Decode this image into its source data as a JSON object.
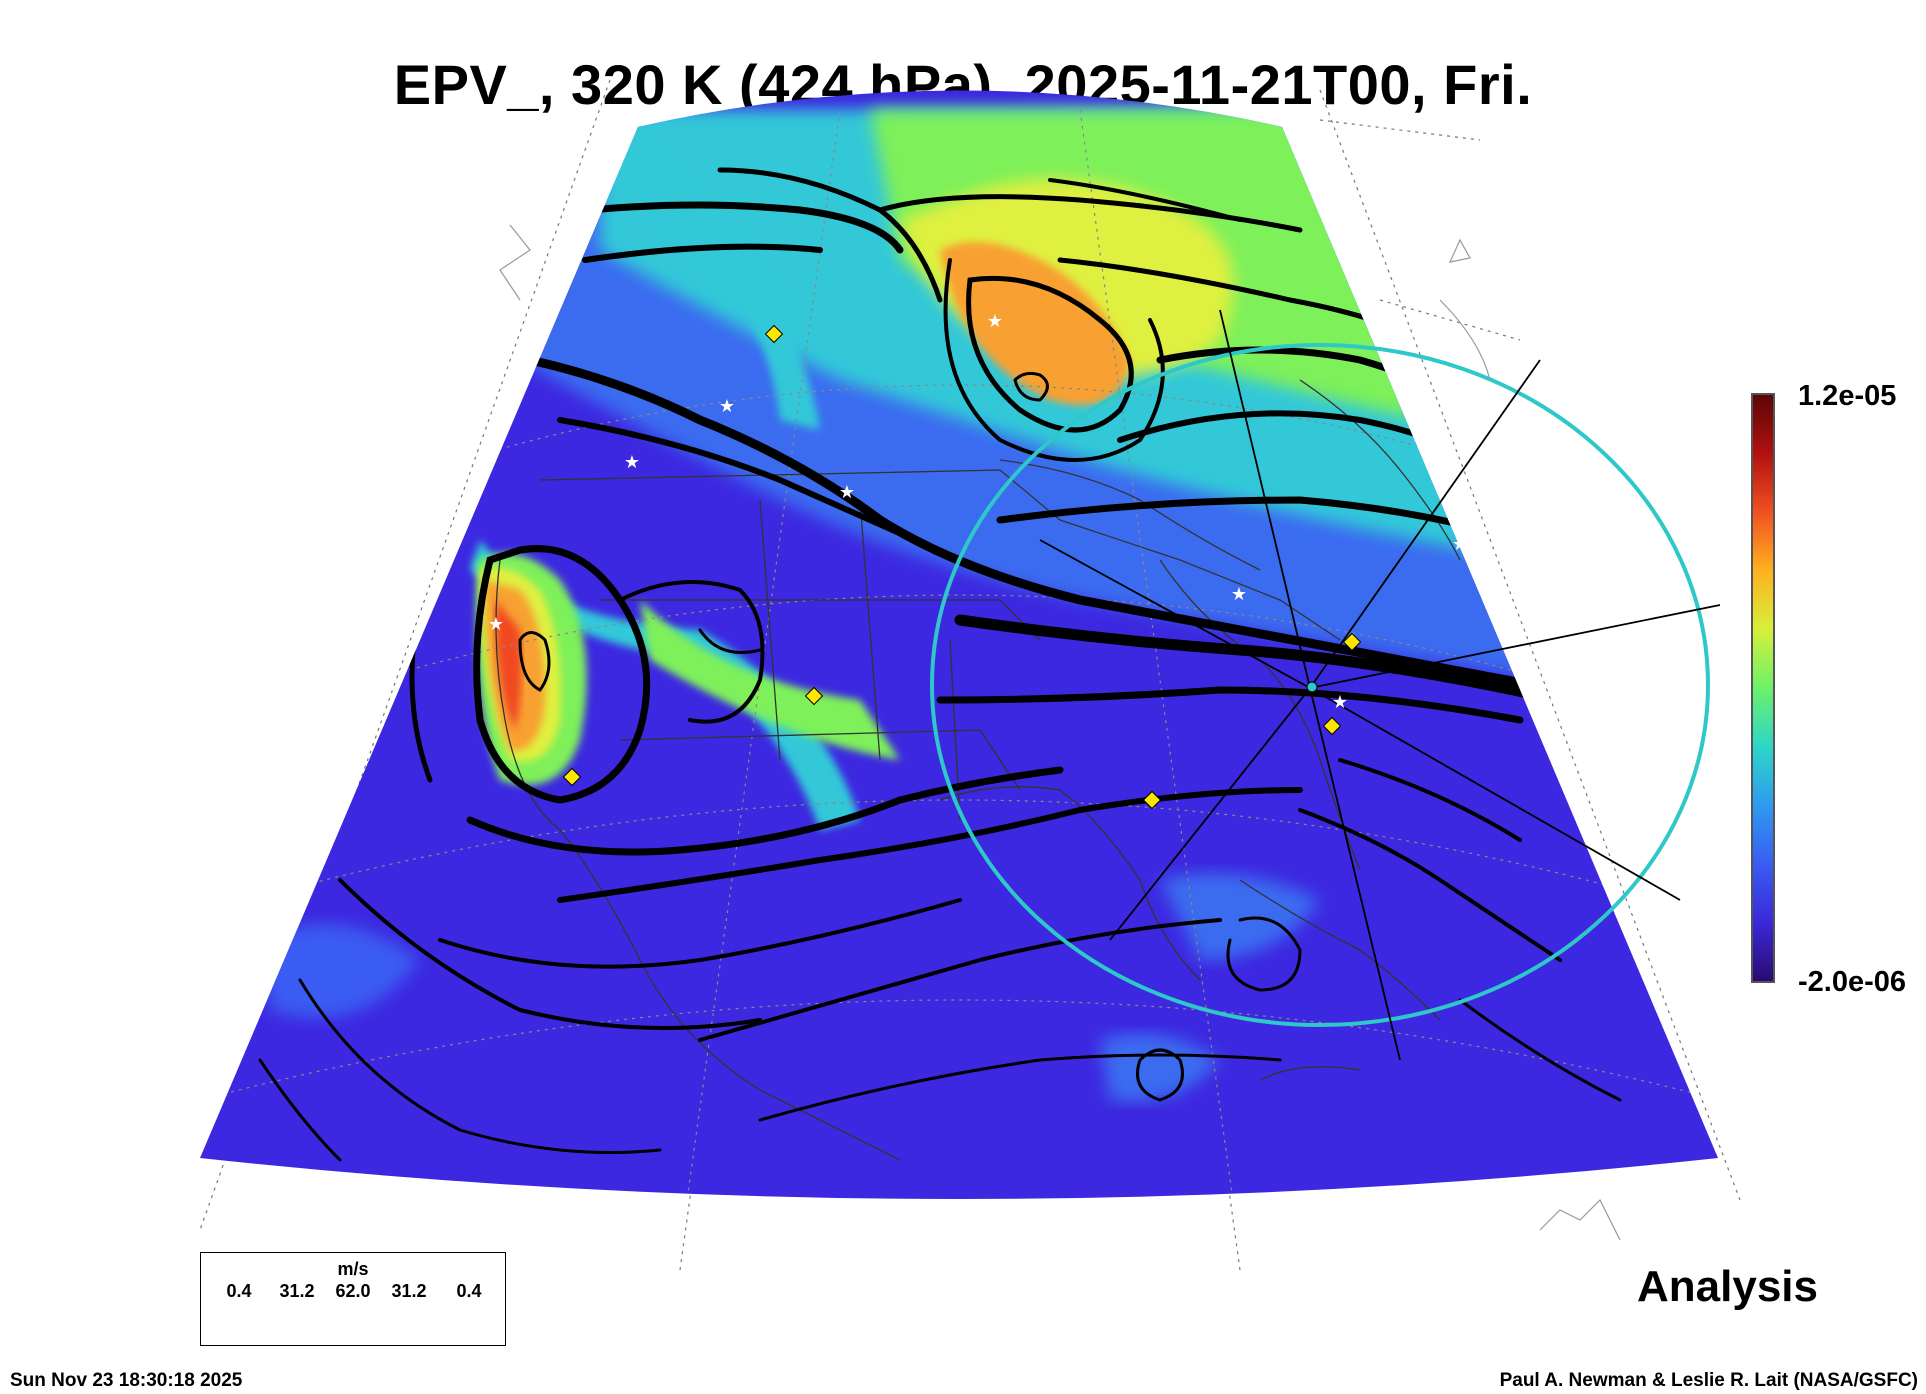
{
  "title": "EPV_, 320 K (424 hPa), 2025-11-21T00, Fri.",
  "colorbar": {
    "max_label": "1.2e-05",
    "min_label": "-2.0e-06",
    "colors": [
      "#2a0a6e",
      "#3b28d8",
      "#3a5cf2",
      "#2f9af0",
      "#2dd6c8",
      "#6ef06a",
      "#d6f03a",
      "#ffb020",
      "#f05020",
      "#b01010",
      "#5a0606"
    ]
  },
  "field_colors": {
    "background": "#3c28e0",
    "low": "#3a6cf0",
    "mid": "#30c8d8",
    "green": "#7ef05a",
    "yellow": "#e0f040",
    "orange": "#f8a030",
    "red": "#f04a20"
  },
  "wind_legend": {
    "unit": "m/s",
    "ticks": [
      "0.4",
      "31.2",
      "62.0",
      "31.2",
      "0.4"
    ]
  },
  "analysis_label": "Analysis",
  "footer": {
    "timestamp": "Sun Nov 23 18:30:18 2025",
    "credit": "Paul A. Newman & Leslie R. Lait (NASA/GSFC)"
  },
  "overlay": {
    "circle_color": "#2ec8c8",
    "marker_colors": {
      "diamond": "#ffe600",
      "star": "#ffffff"
    }
  }
}
